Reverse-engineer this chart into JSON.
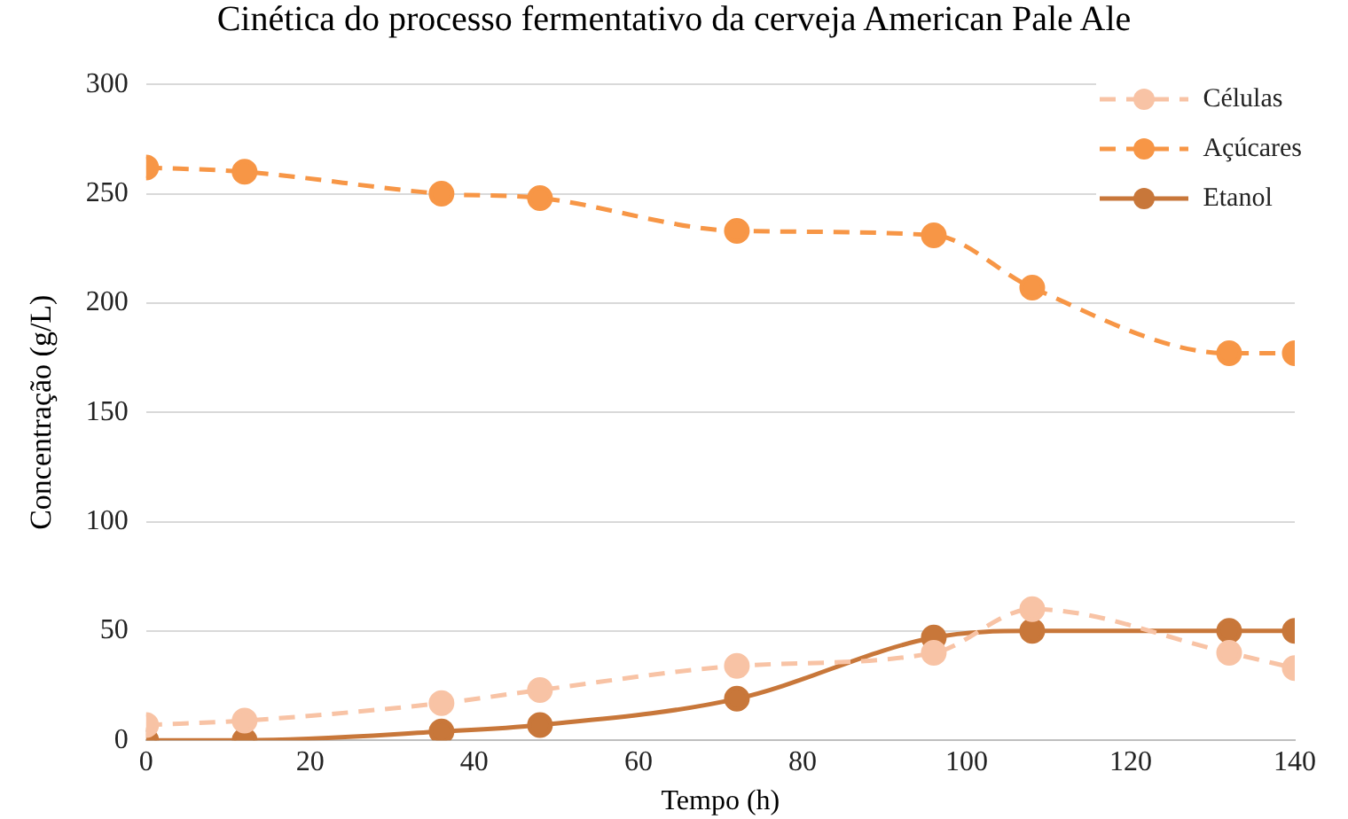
{
  "chart_data": {
    "type": "line",
    "title": "Cinética do processo fermentativo da cerveja American Pale Ale",
    "xlabel": "Tempo (h)",
    "ylabel": "Concentração (g/L)",
    "x": [
      0,
      12,
      36,
      48,
      72,
      96,
      108,
      132,
      140
    ],
    "series": [
      {
        "name": "Células",
        "color": "#f8c3a5",
        "line_style": "dashed",
        "values": [
          7,
          9,
          17,
          23,
          34,
          40,
          60,
          40,
          33
        ]
      },
      {
        "name": "Açúcares",
        "color": "#f79646",
        "line_style": "dashed",
        "values": [
          262,
          260,
          250,
          248,
          233,
          231,
          207,
          177,
          177
        ]
      },
      {
        "name": "Etanol",
        "color": "#c8773a",
        "line_style": "solid",
        "values": [
          0,
          0,
          4,
          7,
          19,
          47,
          50,
          50,
          50
        ]
      }
    ],
    "xlim": [
      0,
      140
    ],
    "xticks": [
      0,
      20,
      40,
      60,
      80,
      100,
      120,
      140
    ],
    "ylim": [
      0,
      300
    ],
    "yticks": [
      0,
      50,
      100,
      150,
      200,
      250,
      300
    ],
    "grid": "y",
    "legend": "top right",
    "marker": "circle"
  }
}
